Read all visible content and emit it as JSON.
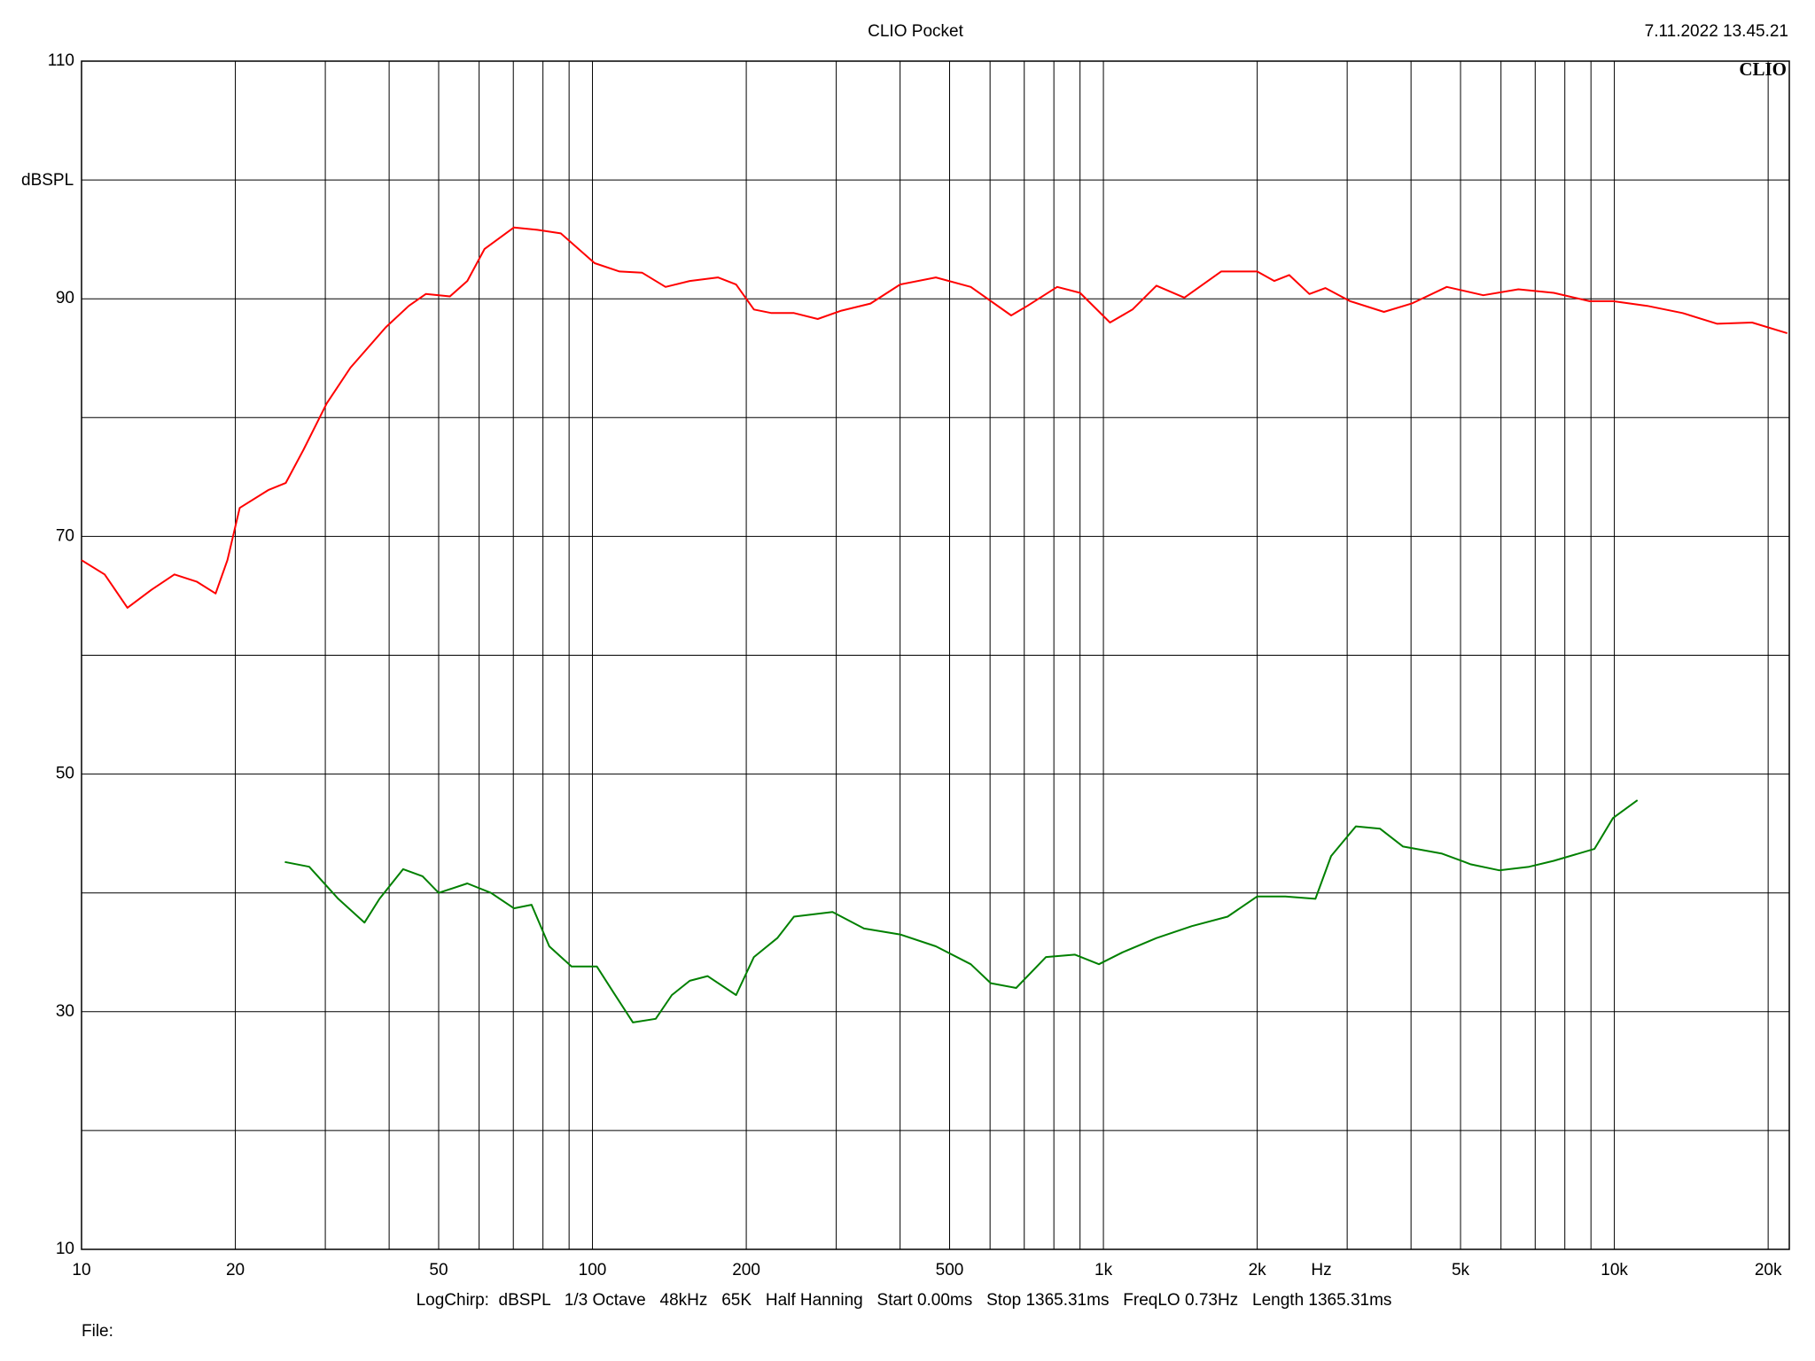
{
  "chart_data": {
    "type": "line",
    "title": "CLIO Pocket",
    "timestamp": "7.11.2022 13.45.21",
    "logo": "CLIO",
    "y_label": "dBSPL",
    "x_label": "Hz",
    "footer": "LogChirp:  dBSPL   1/3 Octave   48kHz   65K   Half Hanning   Start 0.00ms   Stop 1365.31ms   FreqLO 0.73Hz   Length 1365.31ms",
    "file_label": "File:",
    "x_log": true,
    "xlim": [
      10,
      22000
    ],
    "ylim": [
      10,
      110
    ],
    "xticks": [
      10,
      20,
      50,
      100,
      200,
      500,
      {
        "value": 1000,
        "label": "1k"
      },
      {
        "value": 2000,
        "label": "2k"
      },
      {
        "value": 5000,
        "label": "5k"
      },
      {
        "value": 10000,
        "label": "10k"
      },
      {
        "value": 20000,
        "label": "20k"
      }
    ],
    "yticks": [
      10,
      30,
      50,
      70,
      90,
      110
    ],
    "xgrid": [
      10,
      20,
      30,
      40,
      50,
      60,
      70,
      80,
      90,
      100,
      200,
      300,
      400,
      500,
      600,
      700,
      800,
      900,
      1000,
      2000,
      3000,
      4000,
      5000,
      6000,
      7000,
      8000,
      9000,
      10000,
      20000
    ],
    "ygrid": [
      10,
      20,
      30,
      40,
      50,
      60,
      70,
      80,
      90,
      100,
      110
    ],
    "series": [
      {
        "color": "#ff0000",
        "x": [
          10,
          11.1,
          12.3,
          13.7,
          15.2,
          16.8,
          18.3,
          19.3,
          20.4,
          23.2,
          25.1,
          27.2,
          30.2,
          33.6,
          39.4,
          43.7,
          47.2,
          52.6,
          56.9,
          61.5,
          70.2,
          78,
          86.7,
          101,
          113,
          125,
          139,
          155,
          176,
          191,
          207,
          224,
          248,
          276,
          307,
          350,
          400,
          470,
          550,
          660,
          710,
          812,
          900,
          1030,
          1140,
          1270,
          1440,
          1700,
          2000,
          2160,
          2310,
          2530,
          2720,
          3040,
          3540,
          4010,
          4700,
          5540,
          6490,
          7610,
          8940,
          9940,
          11600,
          13600,
          15900,
          18600,
          21800
        ],
        "values": [
          68,
          66.8,
          64.0,
          65.5,
          66.8,
          66.2,
          65.2,
          68,
          72.4,
          73.9,
          74.5,
          77.3,
          81.2,
          84.2,
          87.6,
          89.4,
          90.4,
          90.2,
          91.5,
          94.2,
          96.0,
          95.8,
          95.5,
          93.0,
          92.3,
          92.2,
          91.0,
          91.5,
          91.8,
          91.2,
          89.1,
          88.8,
          88.8,
          88.3,
          89.0,
          89.6,
          91.2,
          91.8,
          91.0,
          88.6,
          89.4,
          91.0,
          90.5,
          88.0,
          89.1,
          91.1,
          90.1,
          92.3,
          92.3,
          91.5,
          92.0,
          90.4,
          90.9,
          89.8,
          88.9,
          89.6,
          91.0,
          90.3,
          90.8,
          90.5,
          89.8,
          89.8,
          89.4,
          88.8,
          87.9,
          88.0,
          87.1
        ]
      },
      {
        "color": "#008000",
        "x": [
          25,
          27.9,
          31.8,
          35.8,
          38.3,
          42.6,
          46.5,
          50,
          56.9,
          63.3,
          70.2,
          76,
          82.3,
          91,
          102,
          110,
          120,
          133,
          143,
          155,
          168,
          191,
          207,
          230,
          248,
          295,
          340,
          400,
          470,
          550,
          602,
          675,
          772,
          880,
          980,
          1090,
          1270,
          1490,
          1750,
          2000,
          2270,
          2600,
          2790,
          3120,
          3480,
          3860,
          4600,
          5240,
          5950,
          6810,
          7610,
          9140,
          9940,
          11100
        ],
        "values": [
          42.6,
          42.2,
          39.5,
          37.5,
          39.5,
          42.0,
          41.4,
          40.0,
          40.8,
          40.0,
          38.7,
          39.0,
          35.5,
          33.8,
          33.8,
          31.6,
          29.1,
          29.4,
          31.4,
          32.6,
          33.0,
          31.4,
          34.6,
          36.2,
          38.0,
          38.4,
          37.0,
          36.5,
          35.5,
          34.0,
          32.4,
          32.0,
          34.6,
          34.8,
          34.0,
          35.0,
          36.2,
          37.2,
          38.0,
          39.7,
          39.7,
          39.5,
          43.1,
          45.6,
          45.4,
          43.9,
          43.3,
          42.4,
          41.9,
          42.2,
          42.7,
          43.7,
          46.3,
          47.8
        ]
      }
    ]
  }
}
